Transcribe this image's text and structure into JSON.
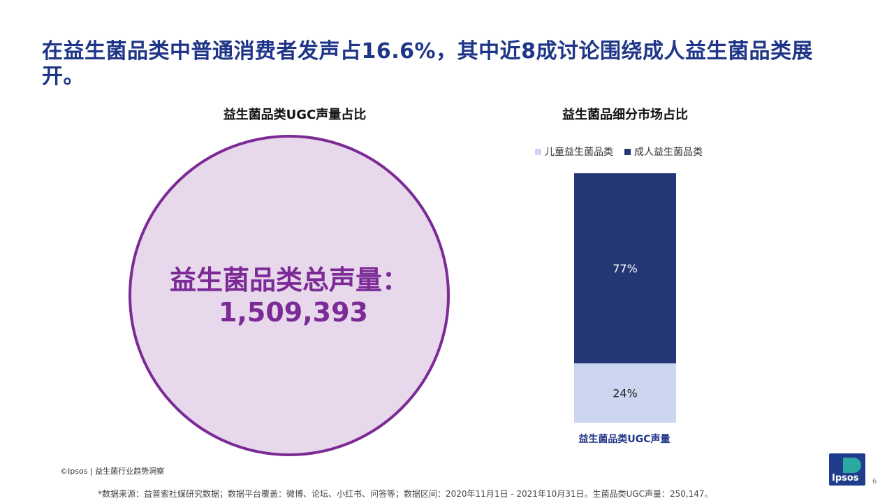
{
  "title": "在益生菌品类中普通消费者发声占16.6%，其中近8成讨论围绕成人益生菌品类展开。",
  "left_chart": {
    "title": "益生菌品类UGC声量占比",
    "label": "益生菌品类总声量：",
    "value": "1,509,393",
    "colors": {
      "fill": "#e8d8eb",
      "stroke": "#7b2a96",
      "text": "#7b2a96"
    }
  },
  "chart_data": {
    "type": "bar",
    "stacked": true,
    "title": "益生菌品细分市场占比",
    "categories": [
      "益生菌品类UGC声量"
    ],
    "series": [
      {
        "name": "儿童益生菌品类",
        "values": [
          24
        ],
        "label": "24%",
        "color": "#cdd6f0"
      },
      {
        "name": "成人益生菌品类",
        "values": [
          77
        ],
        "label": "77%",
        "color": "#243673"
      }
    ],
    "legend": "top",
    "grid": false
  },
  "footer": {
    "copyright": "©Ipsos | 益生菌行业趋势洞察",
    "note": "*数据来源：益普索社媒研究数据；数据平台覆盖：微博、论坛、小红书、问答等；数据区间：2020年11月1日 - 2021年10月31日。生菌品类UGC声量：250,147。",
    "page": "6",
    "logo_text": "Ipsos"
  }
}
